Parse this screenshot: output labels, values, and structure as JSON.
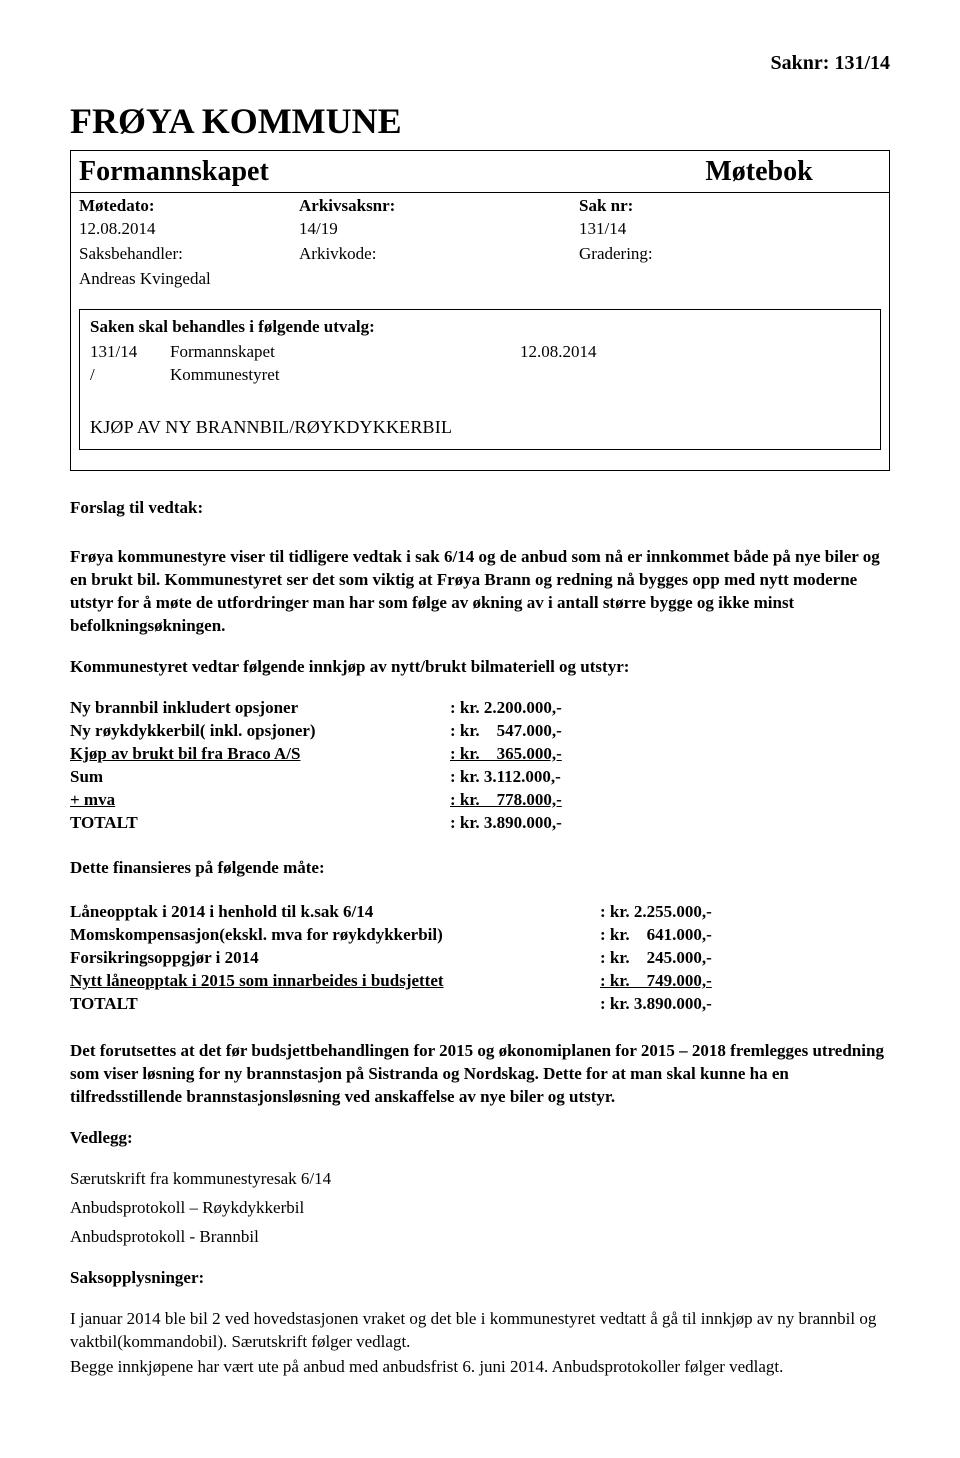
{
  "saknr_header": "Saknr: 131/14",
  "kommune_title": "FRØYA KOMMUNE",
  "box": {
    "formannskapet": "Formannskapet",
    "motebok": "Møtebok",
    "labels": {
      "motedato": "Møtedato:",
      "arkivsaksnr": "Arkivsaksnr:",
      "sak_nr": "Sak nr:"
    },
    "values": {
      "motedato": "12.08.2014",
      "arkivsaksnr": "14/19",
      "sak_nr": "131/14"
    },
    "handler_labels": {
      "saksbehandler": "Saksbehandler:",
      "arkivkode": "Arkivkode:",
      "gradering": "Gradering:"
    },
    "handler_name": "Andreas Kvingedal",
    "utvalg_title": "Saken skal behandles i følgende utvalg:",
    "utvalg_rows": [
      {
        "c1": "131/14",
        "c2": "Formannskapet",
        "c3": "12.08.2014"
      },
      {
        "c1": "/",
        "c2": "Kommunestyret",
        "c3": ""
      }
    ],
    "section_title": "KJØP AV NY BRANNBIL/RØYKDYKKERBIL"
  },
  "forslag_heading": "Forslag til vedtak:",
  "para1": "Frøya kommunestyre viser til tidligere vedtak i sak 6/14 og de anbud som nå er innkommet både på nye biler og en brukt bil. Kommunestyret ser det som viktig at Frøya Brann og redning nå bygges opp med nytt moderne utstyr for å møte de utfordringer man har som følge av økning av i antall større bygge og ikke minst befolkningsøkningen.",
  "para2": "Kommunestyret vedtar følgende innkjøp av nytt/brukt bilmateriell og utstyr:",
  "costs": [
    {
      "label": "Ny brannbil inkludert opsjoner",
      "amount": ": kr. 2.200.000,-",
      "u": false
    },
    {
      "label": "Ny røykdykkerbil( inkl. opsjoner)",
      "amount": ": kr.    547.000,-",
      "u": false
    },
    {
      "label": "Kjøp av brukt bil fra Braco A/S",
      "amount": ": kr.    365.000,-",
      "u": true
    },
    {
      "label": "Sum",
      "amount": ": kr. 3.112.000,-",
      "u": false
    },
    {
      "label": "+ mva",
      "amount": ": kr.    778.000,-",
      "u": true
    },
    {
      "label": "TOTALT",
      "amount": ": kr. 3.890.000,-",
      "u": false
    }
  ],
  "finance_heading": "Dette finansieres på følgende måte:",
  "finance": [
    {
      "label": "Låneopptak i 2014 i henhold til k.sak 6/14",
      "amount": ": kr. 2.255.000,-",
      "u": false
    },
    {
      "label": "Momskompensasjon(ekskl. mva for røykdykkerbil)",
      "amount": ": kr.    641.000,-",
      "u": false
    },
    {
      "label": "Forsikringsoppgjør i 2014",
      "amount": ": kr.    245.000,-",
      "u": false
    },
    {
      "label": "Nytt låneopptak i 2015 som innarbeides i budsjettet",
      "amount": ": kr.    749.000,-",
      "u": true
    },
    {
      "label": "TOTALT",
      "amount": ": kr. 3.890.000,-",
      "u": false
    }
  ],
  "para3": "Det forutsettes at det før budsjettbehandlingen for 2015 og økonomiplanen for 2015 – 2018 fremlegges utredning som viser løsning for ny brannstasjon på Sistranda og Nordskag. Dette for at man skal kunne ha en tilfredsstillende brannstasjonsløsning ved anskaffelse av nye biler og utstyr.",
  "vedlegg_heading": "Vedlegg:",
  "vedlegg_lines": [
    "Særutskrift fra kommunestyresak 6/14",
    "Anbudsprotokoll – Røykdykkerbil",
    "Anbudsprotokoll - Brannbil"
  ],
  "saksopplysninger_heading": "Saksopplysninger:",
  "para4": "I januar 2014 ble bil 2 ved hovedstasjonen vraket og det ble i kommunestyret vedtatt å gå til innkjøp av ny brannbil og vaktbil(kommandobil). Særutskrift følger vedlagt.",
  "para5": "Begge innkjøpene har vært ute på anbud med anbudsfrist 6. juni 2014.  Anbudsprotokoller følger vedlagt."
}
